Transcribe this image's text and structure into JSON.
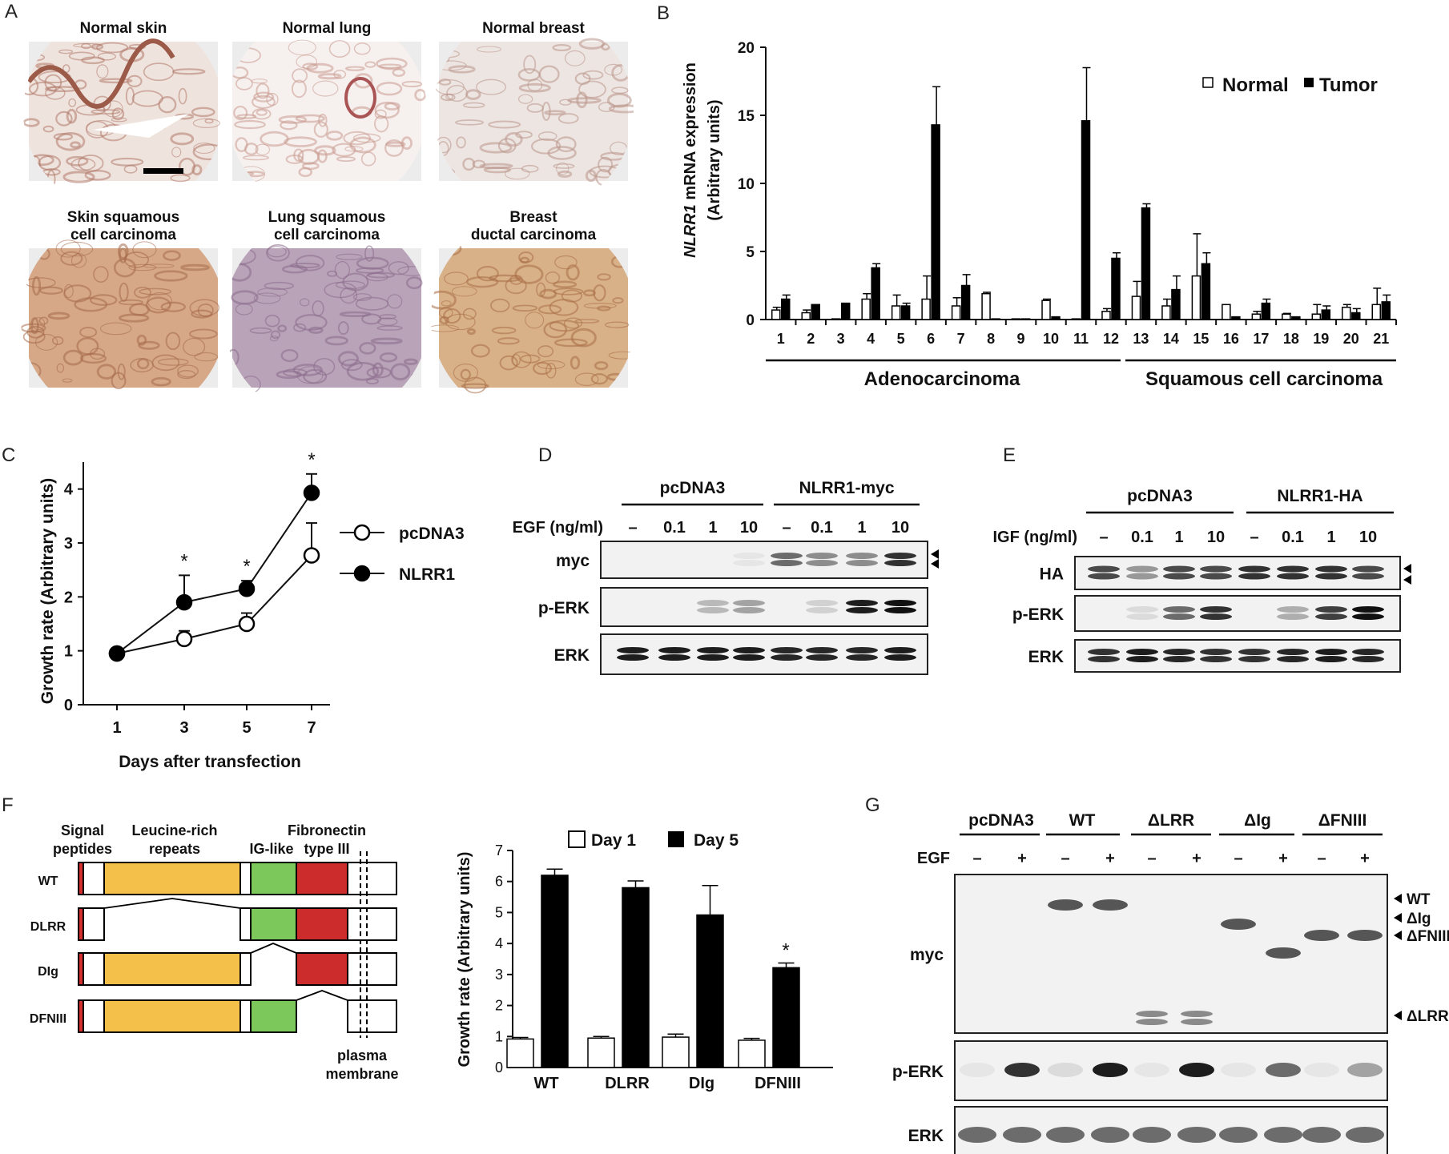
{
  "panels": {
    "A": "A",
    "B": "B",
    "C": "C",
    "D": "D",
    "E": "E",
    "F": "F",
    "G": "G"
  },
  "panel_a": {
    "tissues": [
      {
        "label1": "Normal skin",
        "label2": "",
        "color": "#efe3de",
        "stain": "#b07a6a"
      },
      {
        "label1": "Normal lung",
        "label2": "",
        "color": "#f6f0ee",
        "stain": "#c89a90"
      },
      {
        "label1": "Normal breast",
        "label2": "",
        "color": "#ede5e2",
        "stain": "#b9958a"
      },
      {
        "label1": "Skin squamous",
        "label2": "cell carcinoma",
        "color": "#d6a888",
        "stain": "#a5694a"
      },
      {
        "label1": "Lung squamous",
        "label2": "cell carcinoma",
        "color": "#b9a3b8",
        "stain": "#8a6b8c"
      },
      {
        "label1": "Breast",
        "label2": "ductal carcinoma",
        "color": "#d9b189",
        "stain": "#a86e45"
      }
    ]
  },
  "chart_data": [
    {
      "type": "bar",
      "panel": "B",
      "ylabel_italic": "NLRR1",
      "ylabel_rest": " mRNA expression",
      "ylabel2": "(Arbitrary units)",
      "ylim": [
        0,
        20
      ],
      "yticks": [
        "0",
        "5",
        "10",
        "15",
        "20"
      ],
      "categories": [
        "1",
        "2",
        "3",
        "4",
        "5",
        "6",
        "7",
        "8",
        "9",
        "10",
        "11",
        "12",
        "13",
        "14",
        "15",
        "16",
        "17",
        "18",
        "19",
        "20",
        "21"
      ],
      "series": [
        {
          "name": "Normal",
          "color": "#ffffff",
          "values": [
            0.7,
            0.5,
            0.05,
            1.5,
            1.0,
            1.5,
            1.0,
            1.9,
            0.05,
            1.4,
            0.05,
            0.6,
            1.7,
            1.0,
            3.2,
            1.1,
            0.4,
            0.4,
            0.4,
            0.9,
            1.1
          ],
          "errors": [
            0.2,
            0.2,
            0,
            0.4,
            0.8,
            1.7,
            0.6,
            0.1,
            0,
            0.1,
            0,
            0.2,
            1.1,
            0.5,
            3.1,
            0,
            0.2,
            0.05,
            0.7,
            0.2,
            1.2
          ]
        },
        {
          "name": "Tumor",
          "color": "#000000",
          "values": [
            1.5,
            1.1,
            1.2,
            3.8,
            1.0,
            14.3,
            2.5,
            0.05,
            0.05,
            0.2,
            14.6,
            4.5,
            8.2,
            2.2,
            4.1,
            0.2,
            1.2,
            0.2,
            0.7,
            0.5,
            1.3
          ],
          "errors": [
            0.3,
            0,
            0,
            0.3,
            0.2,
            2.8,
            0.8,
            0,
            0,
            0,
            3.9,
            0.4,
            0.3,
            1.0,
            0.8,
            0,
            0.3,
            0,
            0.3,
            0.3,
            0.5
          ]
        }
      ],
      "groups": [
        {
          "label": "Adenocarcinoma"
        },
        {
          "label": "Squamous cell carcinoma"
        }
      ]
    },
    {
      "type": "line",
      "panel": "C",
      "ylabel": "Growth rate (Arbitrary units)",
      "xlabel": "Days after transfection",
      "x": [
        "1",
        "3",
        "5",
        "7"
      ],
      "ylim": [
        0,
        4.5
      ],
      "yticks": [
        "0",
        "1",
        "2",
        "3",
        "4"
      ],
      "series": [
        {
          "name": "pcDNA3",
          "filled": false,
          "values": [
            0.95,
            1.22,
            1.5,
            2.77
          ],
          "errors": [
            0.1,
            0.15,
            0.2,
            0.6
          ]
        },
        {
          "name": "NLRR1",
          "filled": true,
          "values": [
            0.95,
            1.9,
            2.15,
            3.93
          ],
          "errors": [
            0.05,
            0.5,
            0.15,
            0.35
          ]
        }
      ],
      "significance": [
        "",
        "*",
        "*",
        "*"
      ]
    },
    {
      "type": "bar",
      "panel": "F",
      "ylabel": "Growth rate (Arbitrary units)",
      "ylim": [
        0,
        7
      ],
      "yticks": [
        "0",
        "1",
        "2",
        "3",
        "4",
        "5",
        "6",
        "7"
      ],
      "categories": [
        "WT",
        "DLRR",
        "DIg",
        "DFNIII"
      ],
      "series": [
        {
          "name": "Day 1",
          "color": "#ffffff",
          "values": [
            0.92,
            0.95,
            0.98,
            0.88
          ],
          "errors": [
            0.05,
            0.05,
            0.1,
            0.06
          ]
        },
        {
          "name": "Day 5",
          "color": "#000000",
          "values": [
            6.2,
            5.8,
            4.92,
            3.22
          ],
          "errors": [
            0.2,
            0.22,
            0.95,
            0.15
          ]
        }
      ],
      "significance": [
        "",
        "",
        "",
        "*"
      ]
    }
  ],
  "panel_d": {
    "group1": "pcDNA3",
    "group2": "NLRR1-myc",
    "treat_label": "EGF (ng/ml)",
    "doses": [
      "–",
      "0.1",
      "1",
      "10",
      "–",
      "0.1",
      "1",
      "10"
    ],
    "rows": [
      "myc",
      "p-ERK",
      "ERK"
    ]
  },
  "panel_e": {
    "group1": "pcDNA3",
    "group2": "NLRR1-HA",
    "treat_label": "IGF (ng/ml)",
    "doses": [
      "–",
      "0.1",
      "1",
      "10",
      "–",
      "0.1",
      "1",
      "10"
    ],
    "rows": [
      "HA",
      "p-ERK",
      "ERK"
    ]
  },
  "panel_f_schematic": {
    "domains": [
      "Signal",
      "peptides",
      "Leucine-rich",
      "repeats",
      "IG-like",
      "Fibronectin",
      "type III"
    ],
    "constructs": [
      "WT",
      "DLRR",
      "DIg",
      "DFNIII"
    ],
    "membrane1": "plasma",
    "membrane2": "membrane",
    "colors": {
      "signal": "#d32f2f",
      "lrr": "#f5c04a",
      "ig": "#7cc85a",
      "fn": "#cc2c2c"
    }
  },
  "panel_g": {
    "groups": [
      "pcDNA3",
      "WT",
      "ΔLRR",
      "ΔIg",
      "ΔFNIII"
    ],
    "treat_label": "EGF",
    "signs": [
      "–",
      "+",
      "–",
      "+",
      "–",
      "+",
      "–",
      "+",
      "–",
      "+"
    ],
    "rows": [
      "myc",
      "p-ERK",
      "ERK"
    ],
    "markers": [
      "WT",
      "ΔIg",
      "ΔFNIII",
      "ΔLRR"
    ]
  }
}
